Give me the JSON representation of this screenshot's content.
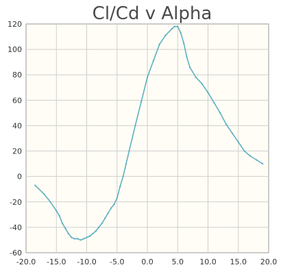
{
  "chart_data": {
    "type": "line",
    "title": "Cl/Cd v Alpha",
    "xlabel": "",
    "ylabel": "",
    "xlim": [
      -20,
      20
    ],
    "ylim": [
      -60,
      120
    ],
    "xticks": [
      "-20.0",
      "-15.0",
      "-10.0",
      "-5.0",
      "0.0",
      "5.0",
      "10.0",
      "15.0",
      "20.0"
    ],
    "yticks": [
      "120",
      "100",
      "80",
      "60",
      "40",
      "20",
      "0",
      "-20",
      "-40",
      "-60"
    ],
    "grid": true,
    "legend": "none",
    "series": [
      {
        "color": "#5fb0c2",
        "x": [
          -18.5,
          -17.0,
          -16.0,
          -15.0,
          -14.5,
          -14.0,
          -13.5,
          -13.0,
          -12.5,
          -12.0,
          -11.5,
          -11.0,
          -10.5,
          -10.0,
          -9.5,
          -9.0,
          -8.5,
          -8.0,
          -7.5,
          -7.0,
          -6.5,
          -6.0,
          -5.5,
          -5.0,
          -4.5,
          -4.0,
          -3.5,
          -3.0,
          -2.0,
          -1.0,
          0.0,
          1.0,
          2.0,
          3.0,
          4.0,
          4.5,
          5.0,
          5.5,
          6.0,
          6.5,
          7.0,
          8.0,
          9.0,
          10.0,
          11.0,
          12.0,
          13.0,
          14.0,
          15.0,
          16.0,
          17.0,
          18.0,
          19.0
        ],
        "y": [
          -7,
          -14,
          -20,
          -27,
          -31,
          -37,
          -41,
          -45,
          -48,
          -49,
          -49,
          -50,
          -49,
          -48,
          -47,
          -45,
          -43,
          -40,
          -37,
          -33,
          -29,
          -25,
          -22,
          -17,
          -8,
          0,
          10,
          20,
          40,
          59,
          78,
          91,
          104,
          111,
          116,
          118,
          118,
          113,
          105,
          94,
          86,
          78,
          73,
          66,
          58,
          50,
          41,
          34,
          27,
          20,
          16,
          13,
          10
        ]
      }
    ]
  }
}
